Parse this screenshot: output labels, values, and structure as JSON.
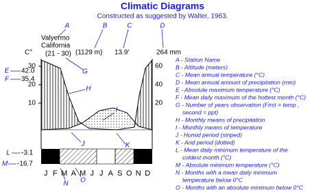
{
  "title": "Climatic Diagrams",
  "subtitle": "Constructed as suggested by Walter, 1963.",
  "station": {
    "name": "Valyermo",
    "region": "California",
    "years": "(21 - 30)",
    "altitude": "(1129 m)",
    "mean_temperature": "13.9'",
    "mean_precipitation": "264 mm"
  },
  "temperature_unit": "C°",
  "left_axis": {
    "ticks": [
      "30",
      "20",
      "10"
    ]
  },
  "right_axis": {
    "ticks": [
      "60",
      "40",
      "20"
    ]
  },
  "extremes": {
    "absolute_max": "42.0",
    "mean_max": "35.4",
    "mean_min": "-3.1",
    "absolute_min": "-16.7"
  },
  "callouts": [
    "A",
    "B",
    "C",
    "D",
    "E",
    "F",
    "G",
    "H",
    "I",
    "J",
    "K",
    "L",
    "M",
    "N",
    "O"
  ],
  "months": [
    "J",
    "F",
    "M",
    "A",
    "M",
    "J",
    "J",
    "A",
    "S",
    "O",
    "N",
    "D"
  ],
  "legend": [
    [
      "A - Station Name"
    ],
    [
      "B - Altitude (meters)"
    ],
    [
      "C - Mean annual temperature (°C)"
    ],
    [
      "D - Mean annual amount of precipitation (mm)"
    ],
    [
      "E - Absolute maximum temperature (°C)"
    ],
    [
      "F - Mean daily maximum of the hottest month (°C)"
    ],
    [
      "G - Number of years observation (First = temp ,",
      "second = ppt)"
    ],
    [
      "H - Monthly means of precipitation"
    ],
    [
      "I - Monthly means of temperature"
    ],
    [
      "J - Humid period (striped)"
    ],
    [
      "K - Arid period (dotted)"
    ],
    [
      "L - Mean daily minimum temperature of the",
      "coldest month (°C)"
    ],
    [
      "M - Absolute minimum temperature (°C)"
    ],
    [
      "N - Months with a mean daily minimum",
      "temperature below 0°C"
    ],
    [
      "O - Months with an absolute minimum below 0°C"
    ]
  ]
}
